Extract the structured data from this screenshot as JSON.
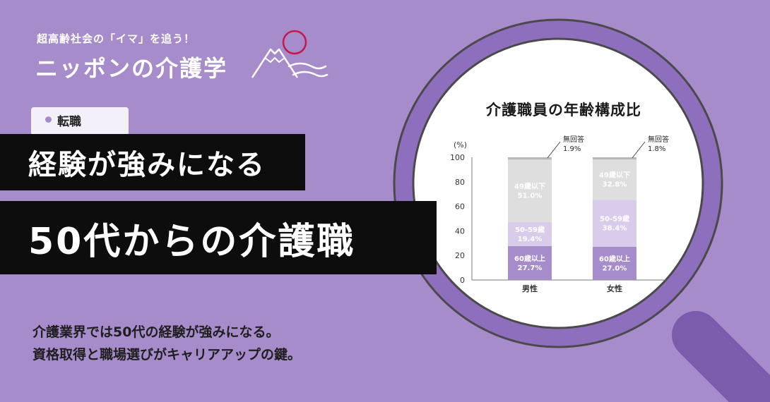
{
  "brand": {
    "tagline": "超高齢社会の「イマ」を追う！",
    "name": "ニッポンの介護学"
  },
  "category": {
    "label": "転職"
  },
  "headline": {
    "line1": "経験が強みになる",
    "line2": "50代からの介護職"
  },
  "description": {
    "line1": "介護業界では50代の経験が強みになる。",
    "line2": "資格取得と職場選びがキャリアアップの鍵。"
  },
  "colors": {
    "background": "#a68ccb",
    "magnifier_ring": "#8e6fbd",
    "magnifier_handle": "#7b5bab",
    "ink": "#0d0d0d",
    "logo_accent": "#c4194a",
    "seg_60_plus": "#a68ccb",
    "seg_50_59": "#d9cceb",
    "seg_49_under": "#dedede",
    "seg_no_answer": "#b8b8b8"
  },
  "chart_data": {
    "type": "bar",
    "stacked": true,
    "title": "介護職員の年齢構成比",
    "ylabel": "(%)",
    "ylim": [
      0,
      100
    ],
    "yticks": [
      0,
      20,
      40,
      60,
      80,
      100
    ],
    "categories": [
      "男性",
      "女性"
    ],
    "series": [
      {
        "name": "60歳以上",
        "values": [
          27.7,
          27.0
        ],
        "labels": [
          "27.7%",
          "27.0%"
        ],
        "color": "#a68ccb"
      },
      {
        "name": "50-59歳",
        "values": [
          19.4,
          38.4
        ],
        "labels": [
          "19.4%",
          "38.4%"
        ],
        "color": "#d9cceb"
      },
      {
        "name": "49歳以下",
        "values": [
          51.0,
          32.8
        ],
        "labels": [
          "51.0%",
          "32.8%"
        ],
        "color": "#dedede"
      },
      {
        "name": "無回答",
        "values": [
          1.9,
          1.8
        ],
        "labels": [
          "1.9%",
          "1.8%"
        ],
        "color": "#b8b8b8"
      }
    ]
  }
}
